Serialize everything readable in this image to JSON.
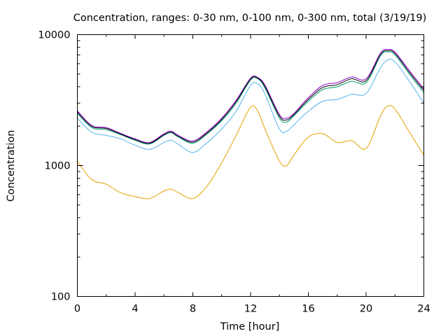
{
  "chart_data": {
    "type": "line",
    "title": "Concentration, ranges: 0-30 nm, 0-100 nm, 0-300 nm, total (3/19/19)",
    "xlabel": "Time [hour]",
    "ylabel": "Concentration",
    "xlim": [
      0,
      24
    ],
    "ylim": [
      100,
      10000
    ],
    "yscale": "log",
    "x_ticks": [
      "0",
      "4",
      "8",
      "12",
      "16",
      "20",
      "24"
    ],
    "y_ticks": [
      "100",
      "1000",
      "10000"
    ],
    "grid": false,
    "legend": "none",
    "x": [
      0,
      1,
      2,
      3,
      4,
      5,
      6,
      6.5,
      7,
      8,
      9,
      10,
      11,
      12,
      12.5,
      13,
      14,
      14.5,
      15,
      16,
      17,
      18,
      19,
      20,
      21,
      21.5,
      22,
      23,
      24
    ],
    "series": [
      {
        "color": "#e69f00",
        "values": [
          1080,
          780,
          720,
          620,
          580,
          560,
          640,
          660,
          620,
          560,
          700,
          1050,
          1700,
          2800,
          2600,
          1900,
          1080,
          1000,
          1200,
          1650,
          1750,
          1500,
          1550,
          1350,
          2400,
          2850,
          2700,
          1800,
          1200
        ]
      },
      {
        "color": "#56b4e9",
        "values": [
          2300,
          1800,
          1700,
          1600,
          1430,
          1330,
          1500,
          1560,
          1450,
          1260,
          1500,
          1900,
          2600,
          4100,
          4200,
          3500,
          1900,
          1830,
          2050,
          2600,
          3100,
          3200,
          3500,
          3550,
          5600,
          6400,
          6200,
          4400,
          3000
        ]
      },
      {
        "color": "#009e73",
        "values": [
          2500,
          1950,
          1880,
          1720,
          1560,
          1460,
          1700,
          1780,
          1650,
          1480,
          1750,
          2200,
          3000,
          4500,
          4600,
          3900,
          2300,
          2150,
          2400,
          3100,
          3800,
          4000,
          4400,
          4300,
          6900,
          7400,
          7000,
          5000,
          3600
        ]
      },
      {
        "color": "#9400d3",
        "values": [
          2620,
          2020,
          1950,
          1760,
          1600,
          1500,
          1750,
          1830,
          1700,
          1540,
          1820,
          2300,
          3150,
          4650,
          4700,
          4100,
          2450,
          2300,
          2500,
          3300,
          4100,
          4300,
          4750,
          4600,
          7250,
          7700,
          7350,
          5300,
          3850
        ]
      },
      {
        "color": "#000000",
        "values": [
          2560,
          1990,
          1920,
          1740,
          1580,
          1480,
          1720,
          1800,
          1670,
          1510,
          1780,
          2250,
          3080,
          4580,
          4650,
          4000,
          2380,
          2230,
          2450,
          3200,
          3950,
          4150,
          4600,
          4450,
          7050,
          7550,
          7200,
          5150,
          3750
        ]
      }
    ]
  }
}
